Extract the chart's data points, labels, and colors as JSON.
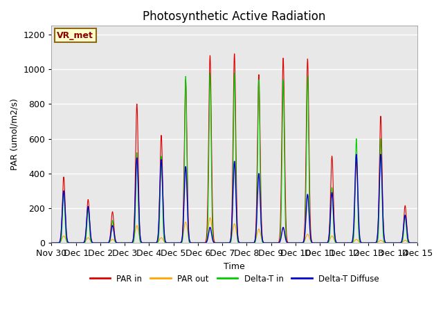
{
  "title": "Photosynthetic Active Radiation",
  "ylabel": "PAR (umol/m2/s)",
  "xlabel": "Time",
  "ylim": [
    0,
    1250
  ],
  "xlim": [
    0,
    15
  ],
  "background_color": "#e8e8e8",
  "label_box": "VR_met",
  "tick_labels": [
    "Nov 30",
    "Dec 1",
    "Dec 2",
    "Dec 3",
    "Dec 4",
    "Dec 5",
    "Dec 6",
    "Dec 7",
    "Dec 8",
    "Dec 9",
    "Dec 10",
    "Dec 11",
    "Dec 12",
    "Dec 13",
    "Dec 14",
    "Dec 15"
  ],
  "tick_positions": [
    0,
    1,
    2,
    3,
    4,
    5,
    6,
    7,
    8,
    9,
    10,
    11,
    12,
    13,
    14,
    15
  ],
  "colors": {
    "PAR_in": "#dd0000",
    "PAR_out": "#ffa500",
    "Delta_T_in": "#00cc00",
    "Delta_T_diffuse": "#0000cc"
  },
  "legend_labels": [
    "PAR in",
    "PAR out",
    "Delta-T in",
    "Delta-T Diffuse"
  ],
  "daily_peaks": {
    "PAR_in": [
      380,
      250,
      180,
      800,
      620,
      940,
      1080,
      1090,
      970,
      1065,
      1060,
      500,
      470,
      730,
      215
    ],
    "PAR_out": [
      40,
      30,
      20,
      100,
      30,
      120,
      145,
      110,
      80,
      80,
      50,
      40,
      20,
      15,
      15
    ],
    "Delta_T_in": [
      300,
      200,
      130,
      520,
      500,
      960,
      980,
      980,
      940,
      940,
      960,
      320,
      600,
      600,
      160
    ],
    "Delta_T_diff": [
      300,
      210,
      100,
      490,
      480,
      440,
      90,
      470,
      400,
      90,
      280,
      290,
      510,
      510,
      160
    ]
  },
  "pulse_widths": {
    "PAR_in": 0.055,
    "PAR_out": 0.075,
    "Delta_T_in": 0.045,
    "Delta_T_diff": 0.06
  },
  "yticks": [
    0,
    200,
    400,
    600,
    800,
    1000,
    1200
  ]
}
